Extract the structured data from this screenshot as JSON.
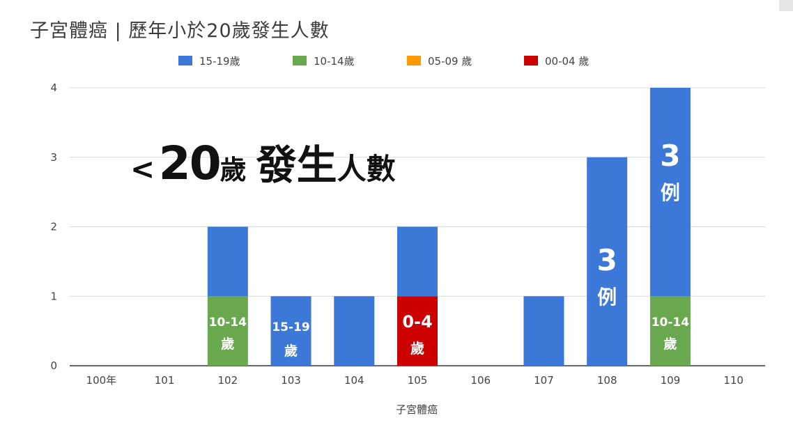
{
  "title": "子宮體癌 | 歷年小於20歲發生人數",
  "overlay": {
    "lt": "<",
    "num": "20",
    "unit": "歲",
    "big": "發生",
    "small": "人數"
  },
  "chart_data": {
    "type": "bar",
    "stacked": true,
    "categories": [
      "100年",
      "101",
      "102",
      "103",
      "104",
      "105",
      "106",
      "107",
      "108",
      "109",
      "110"
    ],
    "series": [
      {
        "name": "00-04 歲",
        "color": "#cc0000",
        "values": [
          0,
          0,
          0,
          0,
          0,
          1,
          0,
          0,
          0,
          0,
          0
        ]
      },
      {
        "name": "05-09 歲",
        "color": "#ff9900",
        "values": [
          0,
          0,
          0,
          0,
          0,
          0,
          0,
          0,
          0,
          0,
          0
        ]
      },
      {
        "name": "10-14歲",
        "color": "#6aa84f",
        "values": [
          0,
          0,
          1,
          0,
          0,
          0,
          0,
          0,
          0,
          1,
          0
        ]
      },
      {
        "name": "15-19歲",
        "color": "#3c78d8",
        "values": [
          0,
          0,
          1,
          1,
          1,
          1,
          0,
          1,
          3,
          3,
          0
        ]
      }
    ],
    "legend_order": [
      "15-19歲",
      "10-14歲",
      "05-09 歲",
      "00-04 歲"
    ],
    "legend_position": "top",
    "xlabel": "子宮體癌",
    "ylabel": "",
    "ylim": [
      0,
      4
    ],
    "yticks": [
      0,
      1,
      2,
      3,
      4
    ],
    "grid": true,
    "annotations": [
      {
        "category": "102",
        "lines": [
          "10-14",
          "歲"
        ],
        "color": "#ffffff"
      },
      {
        "category": "103",
        "lines": [
          "15-19",
          "歲"
        ],
        "color": "#ffffff"
      },
      {
        "category": "105",
        "lines": [
          "0-4",
          "歲"
        ],
        "color": "#ffffff"
      },
      {
        "category": "108",
        "lines": [
          "3",
          "例"
        ],
        "color": "#ffffff"
      },
      {
        "category": "109",
        "lines": [
          "3",
          "例"
        ],
        "color": "#ffffff"
      },
      {
        "category": "109",
        "lines": [
          "10-14",
          "歲"
        ],
        "color": "#ffffff"
      }
    ]
  }
}
